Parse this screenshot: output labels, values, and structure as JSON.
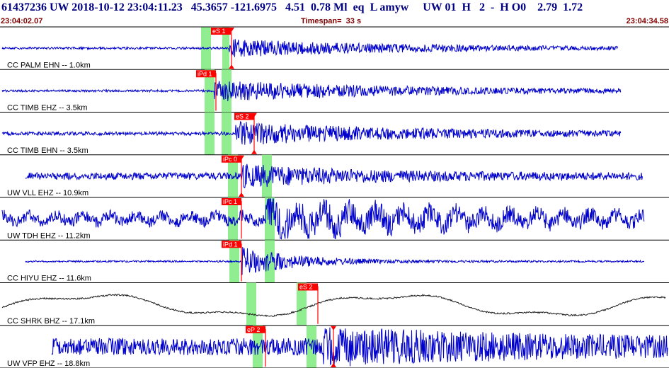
{
  "header": {
    "title": "61437236 UW 2018-10-12 23:04:11.23   45.3657 -121.6975   4.51  0.78 Ml  eq  L amyw     UW 01  H   2  -  H O0    2.79  1.72",
    "start_time": "23:04:02.07",
    "timespan": "Timespan=  33 s",
    "end_time": "23:04:34.58"
  },
  "colors": {
    "trace": "#0000cc",
    "trace_dark": "#1a1a1a",
    "pick": "#ff0000",
    "pick_label_bg": "#ff0000",
    "window": "#90ee90",
    "divider": "#000000",
    "header_text": "#000080",
    "time_text": "#800000"
  },
  "panels": [
    {
      "label": "CC PALM EHN -- 1.0km",
      "windows": [
        [
          284,
          298
        ],
        [
          314,
          324
        ]
      ],
      "picks": [
        {
          "x": 327,
          "label": "eS 1",
          "label_x": 298,
          "triangles": true
        }
      ],
      "trace": {
        "start": 3,
        "end": 873,
        "arrival": 322,
        "amp_pre": 1.5,
        "amp_post": 12,
        "decay": 0.004,
        "freq": 0.7,
        "smooth": 0.0,
        "color": "trace"
      }
    },
    {
      "label": "CC TIMB EHZ -- 3.5km",
      "windows": [
        [
          289,
          303
        ],
        [
          313,
          327
        ]
      ],
      "picks": [
        {
          "x": 305,
          "label": "iPd 1",
          "label_x": 277,
          "triangles": false
        }
      ],
      "trace": {
        "start": 3,
        "end": 877,
        "arrival": 303,
        "amp_pre": 1.5,
        "amp_post": 14,
        "decay": 0.0035,
        "freq": 0.7,
        "smooth": 0.0,
        "color": "trace"
      }
    },
    {
      "label": "CC TIMB EHN -- 3.5km",
      "windows": [
        [
          289,
          303
        ],
        [
          313,
          327
        ]
      ],
      "picks": [
        {
          "x": 359,
          "label": "eS 2",
          "label_x": 331,
          "triangles": true
        }
      ],
      "trace": {
        "start": 3,
        "end": 877,
        "arrival": 333,
        "amp_pre": 2.5,
        "amp_post": 15,
        "decay": 0.004,
        "freq": 0.7,
        "smooth": 0.0,
        "color": "trace"
      }
    },
    {
      "label": "UW VLL EHZ -- 10.9km",
      "windows": [
        [
          322,
          336
        ],
        [
          370,
          384
        ]
      ],
      "picks": [
        {
          "x": 341,
          "label": "iPc 0",
          "label_x": 313,
          "triangles": true
        }
      ],
      "trace": {
        "start": 36,
        "end": 908,
        "arrival": 341,
        "amp_pre": 5,
        "amp_post": 13,
        "decay": 0.006,
        "freq": 0.6,
        "smooth": 0.0,
        "color": "trace"
      }
    },
    {
      "label": "UW TDH EHZ -- 11.2km",
      "windows": [
        [
          322,
          336
        ],
        [
          374,
          388
        ]
      ],
      "picks": [
        {
          "x": 341,
          "label": "iPc 1",
          "label_x": 313,
          "triangles": false
        }
      ],
      "trace": {
        "start": 3,
        "end": 910,
        "arrival": 375,
        "amp_pre": 8,
        "amp_post": 17,
        "decay": 0.004,
        "freq": 0.25,
        "smooth": 0.0,
        "color": "trace"
      }
    },
    {
      "label": "CC HIYU EHZ -- 11.6km",
      "windows": [
        [
          324,
          338
        ],
        [
          374,
          388
        ]
      ],
      "picks": [
        {
          "x": 341,
          "label": "iPd 1",
          "label_x": 313,
          "triangles": false
        }
      ],
      "trace": {
        "start": 36,
        "end": 910,
        "arrival": 341,
        "amp_pre": 1.2,
        "amp_post": 20,
        "decay": 0.012,
        "freq": 0.7,
        "smooth": 0.0,
        "color": "trace"
      }
    },
    {
      "label": "CC SHRK BHZ -- 17.1km",
      "windows": [
        [
          348,
          362
        ],
        [
          419,
          433
        ]
      ],
      "picks": [
        {
          "x": 449,
          "label": "eS 2",
          "label_x": 421,
          "triangles": false
        }
      ],
      "trace": {
        "start": 3,
        "end": 940,
        "arrival": 0,
        "amp_pre": 0,
        "amp_post": 0,
        "decay": 0,
        "freq": 0,
        "smooth": 1.0,
        "color": "trace_dark"
      }
    },
    {
      "label": "UW VFP EHZ -- 18.8km",
      "windows": [
        [
          357,
          371
        ],
        [
          433,
          447
        ]
      ],
      "picks": [
        {
          "x": 375,
          "label": "eP 2",
          "label_x": 347,
          "triangles": false
        },
        {
          "x": 471,
          "label": "",
          "label_x": 0,
          "triangles": true
        }
      ],
      "trace": {
        "start": 73,
        "end": 943,
        "arrival": 455,
        "amp_pre": 12,
        "amp_post": 18,
        "decay": 0.003,
        "freq": 0.8,
        "smooth": 0.0,
        "color": "trace"
      }
    }
  ]
}
